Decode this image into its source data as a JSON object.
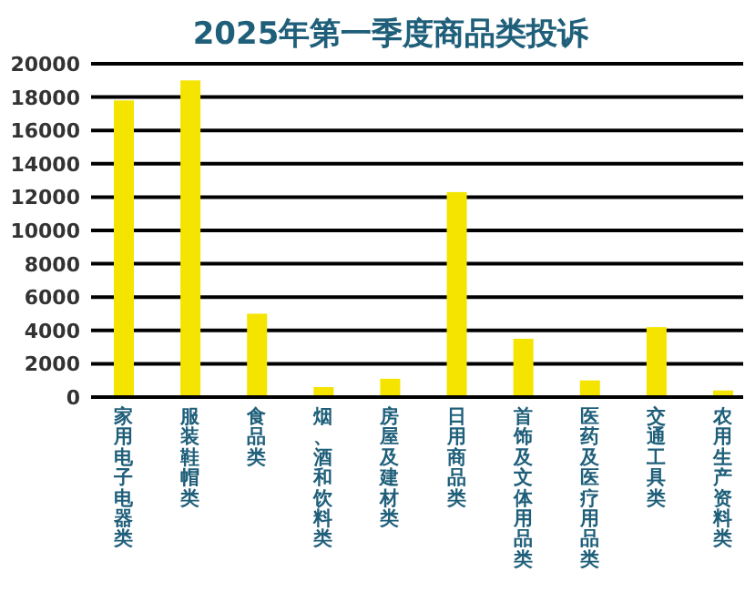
{
  "chart_data": {
    "type": "bar",
    "title": "2025年第一季度商品类投诉",
    "categories": [
      "家用电子电器类",
      "服装鞋帽类",
      "食品类",
      "烟、酒和饮料类",
      "房屋及建材类",
      "日用商品类",
      "首饰及文体用品类",
      "医药及医疗用品类",
      "交通工具类",
      "农用生产资料类"
    ],
    "values": [
      17800,
      19000,
      5000,
      600,
      1100,
      12300,
      3500,
      1000,
      4200,
      400
    ],
    "color": "#f5e400",
    "ylim": [
      0,
      20000
    ],
    "yticks": [
      0,
      2000,
      4000,
      6000,
      8000,
      10000,
      12000,
      14000,
      16000,
      18000,
      20000
    ],
    "grid": "y"
  }
}
